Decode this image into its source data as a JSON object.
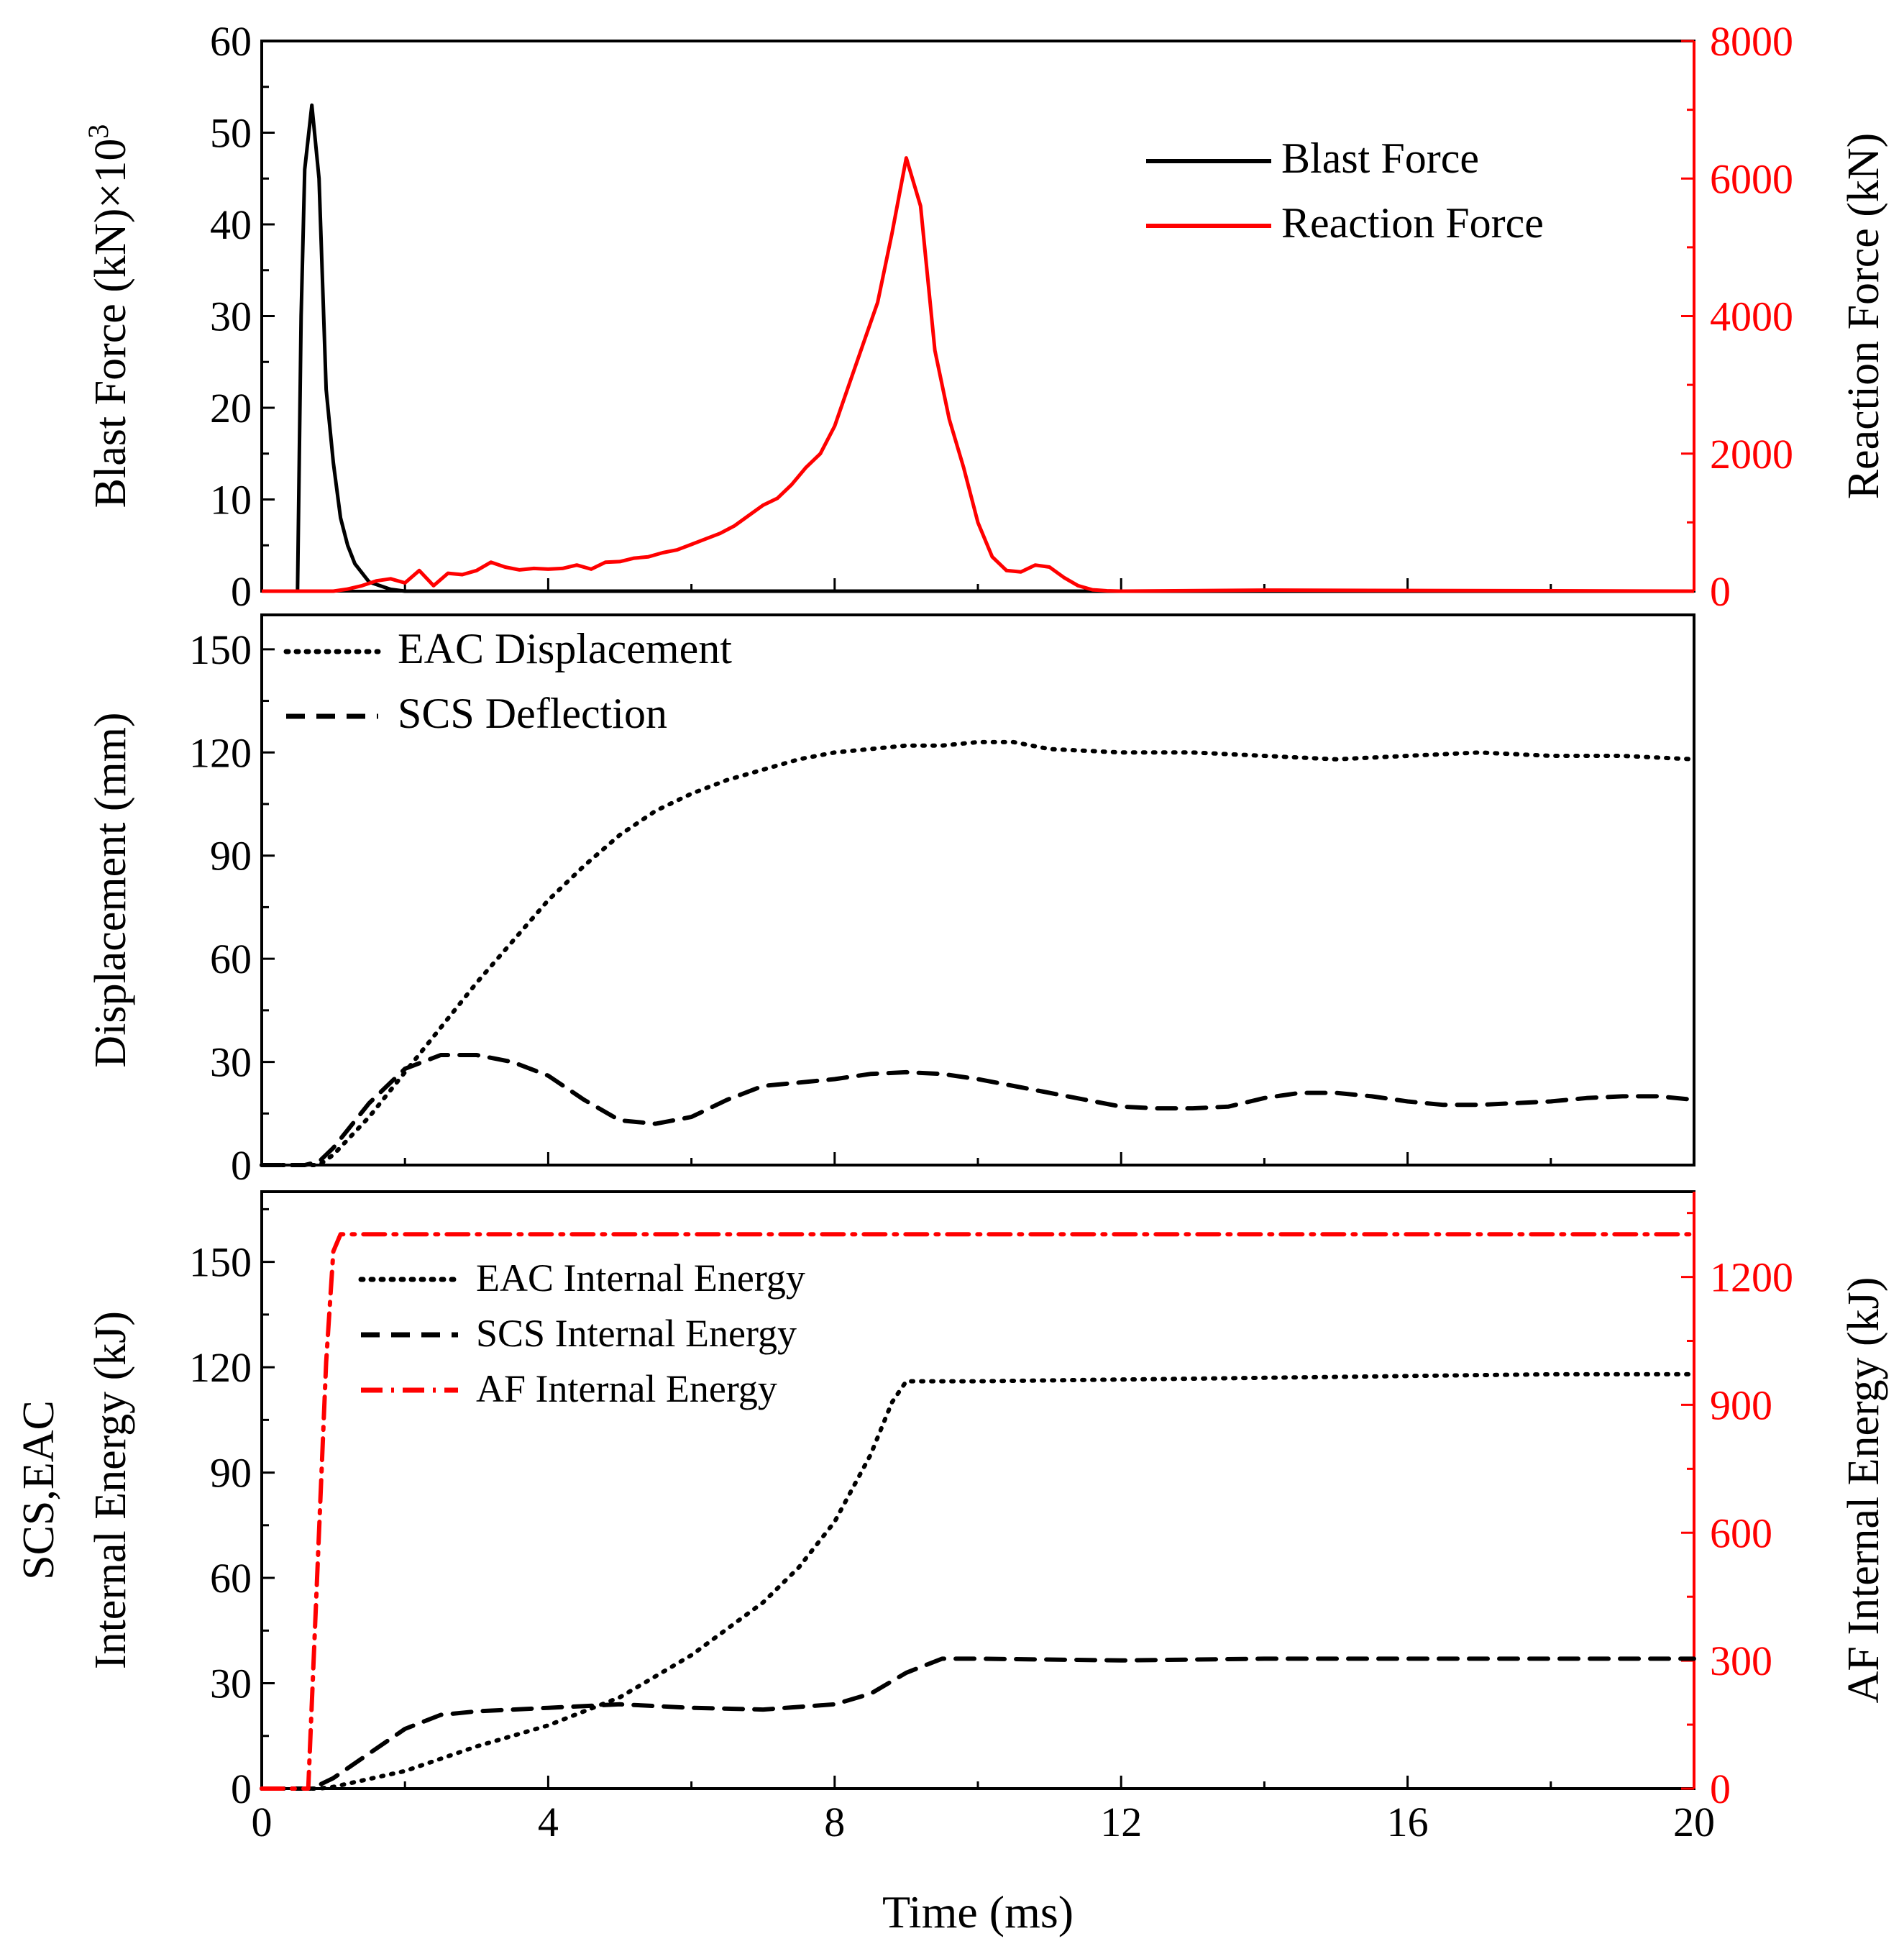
{
  "chart_data": [
    {
      "type": "line",
      "panel": "top",
      "ylabel": "Blast Force (kN)×10",
      "ylabel_sup": "3",
      "y2label": "Reaction Force (kN)",
      "ylim": [
        0,
        60
      ],
      "y2lim": [
        0,
        8000
      ],
      "xlim": [
        0,
        20
      ],
      "yticks": [
        "0",
        "10",
        "20",
        "30",
        "40",
        "50",
        "60"
      ],
      "y2ticks": [
        "0",
        "2000",
        "4000",
        "6000",
        "8000"
      ],
      "legend_position": "top-right",
      "series": [
        {
          "name": "Blast Force",
          "axis": "left",
          "color": "#000000",
          "style": "solid",
          "x": [
            0,
            0.4,
            0.5,
            0.55,
            0.6,
            0.7,
            0.8,
            0.9,
            1.0,
            1.1,
            1.2,
            1.3,
            1.5,
            1.8,
            2.0,
            20
          ],
          "y": [
            0,
            0,
            0,
            30,
            46,
            53,
            45,
            22,
            14,
            8,
            5,
            3,
            1,
            0.2,
            0,
            0
          ]
        },
        {
          "name": "Reaction Force",
          "axis": "right",
          "color": "#ff0000",
          "style": "solid",
          "x": [
            0,
            1.0,
            1.2,
            1.4,
            1.6,
            1.8,
            2.0,
            2.2,
            2.4,
            2.6,
            2.8,
            3.0,
            3.2,
            3.4,
            3.6,
            3.8,
            4.0,
            4.2,
            4.4,
            4.6,
            4.8,
            5.0,
            5.2,
            5.4,
            5.6,
            5.8,
            6.0,
            6.2,
            6.4,
            6.6,
            6.8,
            7.0,
            7.2,
            7.4,
            7.6,
            7.8,
            8.0,
            8.2,
            8.4,
            8.6,
            8.8,
            9.0,
            9.2,
            9.4,
            9.6,
            9.8,
            10.0,
            10.2,
            10.4,
            10.6,
            10.8,
            11.0,
            11.2,
            11.4,
            11.6,
            11.8,
            12.0,
            14.0,
            20.0
          ],
          "y": [
            0,
            0,
            30,
            80,
            150,
            180,
            120,
            300,
            80,
            260,
            240,
            300,
            420,
            350,
            310,
            330,
            320,
            330,
            380,
            320,
            420,
            430,
            480,
            500,
            560,
            600,
            680,
            760,
            840,
            950,
            1100,
            1250,
            1350,
            1550,
            1800,
            2000,
            2400,
            3000,
            3600,
            4200,
            5200,
            6300,
            5600,
            3500,
            2500,
            1800,
            1000,
            500,
            300,
            280,
            380,
            350,
            200,
            80,
            20,
            5,
            0,
            15,
            0
          ]
        }
      ]
    },
    {
      "type": "line",
      "panel": "middle",
      "ylabel": "Displacement (mm)",
      "ylim": [
        0,
        160
      ],
      "xlim": [
        0,
        20
      ],
      "yticks": [
        "0",
        "30",
        "60",
        "90",
        "120",
        "150"
      ],
      "legend_position": "top-left",
      "series": [
        {
          "name": "EAC Displacement",
          "color": "#000000",
          "style": "dotted",
          "x": [
            0,
            0.8,
            1.0,
            1.5,
            2.0,
            2.5,
            3.0,
            3.5,
            4.0,
            4.5,
            5.0,
            5.5,
            6.0,
            6.5,
            7.0,
            7.5,
            8.0,
            8.5,
            9.0,
            9.5,
            10.0,
            10.5,
            11.0,
            12.0,
            13.0,
            14.0,
            15.0,
            16.0,
            17.0,
            18.0,
            19.0,
            20.0
          ],
          "y": [
            0,
            0,
            3,
            14,
            27,
            40,
            53,
            65,
            77,
            87,
            96,
            103,
            108,
            112,
            115,
            118,
            120,
            121,
            122,
            122,
            123,
            123,
            121,
            120,
            120,
            119,
            118,
            119,
            120,
            119,
            119,
            118
          ]
        },
        {
          "name": "SCS Deflection",
          "color": "#000000",
          "style": "dashed",
          "x": [
            0,
            0.6,
            0.8,
            1.0,
            1.5,
            2.0,
            2.5,
            3.0,
            3.5,
            4.0,
            4.5,
            5.0,
            5.5,
            6.0,
            6.5,
            7.0,
            7.5,
            8.0,
            8.5,
            9.0,
            9.5,
            10.0,
            10.5,
            11.0,
            11.5,
            12.0,
            12.5,
            13.0,
            13.5,
            14.0,
            14.5,
            15.0,
            15.5,
            16.0,
            16.5,
            17.0,
            17.5,
            18.0,
            18.5,
            19.0,
            19.5,
            20.0
          ],
          "y": [
            0,
            0,
            1,
            5,
            18,
            28,
            32,
            32,
            30,
            26,
            19,
            13,
            12,
            14,
            19,
            23,
            24,
            25,
            26.5,
            27,
            26.5,
            25,
            23,
            21,
            19,
            17,
            16.5,
            16.5,
            17,
            19.5,
            21,
            21,
            20,
            18.5,
            17.5,
            17.5,
            18,
            18.5,
            19.5,
            20,
            20,
            19
          ]
        }
      ]
    },
    {
      "type": "line",
      "panel": "bottom",
      "ylabel_lines": [
        "SCS,EAC",
        "Internal Energy (kJ)"
      ],
      "y2label": "AF Internal Energy (kJ)",
      "ylim": [
        0,
        170
      ],
      "y2lim": [
        0,
        1400
      ],
      "xlim": [
        0,
        20
      ],
      "xlabel": "Time (ms)",
      "xticks": [
        "0",
        "4",
        "8",
        "12",
        "16",
        "20"
      ],
      "yticks": [
        "0",
        "30",
        "60",
        "90",
        "120",
        "150"
      ],
      "y2ticks": [
        "0",
        "300",
        "600",
        "900",
        "1200"
      ],
      "legend_position": "top-left",
      "series": [
        {
          "name": "EAC Internal Energy",
          "axis": "left",
          "color": "#000000",
          "style": "dotted",
          "x": [
            0,
            0.8,
            1.0,
            2.0,
            3.0,
            4.0,
            5.0,
            6.0,
            7.0,
            7.5,
            8.0,
            8.5,
            8.8,
            9.0,
            10.0,
            12.0,
            14.0,
            16.0,
            18.0,
            20.0
          ],
          "y": [
            0,
            0,
            0.5,
            5,
            12,
            18,
            26,
            38,
            53,
            63,
            76,
            95,
            110,
            116,
            116,
            116.5,
            117,
            117.5,
            118,
            118
          ]
        },
        {
          "name": "SCS Internal Energy",
          "axis": "left",
          "color": "#000000",
          "style": "dashed",
          "x": [
            0,
            0.7,
            1.0,
            1.5,
            2.0,
            2.5,
            3.0,
            4.0,
            5.0,
            6.0,
            7.0,
            8.0,
            8.5,
            9.0,
            9.5,
            10.0,
            12.0,
            14.0,
            16.0,
            18.0,
            20.0
          ],
          "y": [
            0,
            0,
            3,
            10,
            17,
            21,
            22,
            23,
            24,
            23,
            22.5,
            24,
            27,
            33,
            37,
            37,
            36.5,
            37,
            37,
            37,
            37
          ]
        },
        {
          "name": "AF Internal Energy",
          "axis": "right",
          "color": "#ff0000",
          "style": "dashdot",
          "x": [
            0,
            0.5,
            0.65,
            0.9,
            1.0,
            1.1,
            20.0
          ],
          "y": [
            0,
            0,
            0,
            1000,
            1260,
            1300,
            1300
          ]
        }
      ]
    }
  ]
}
